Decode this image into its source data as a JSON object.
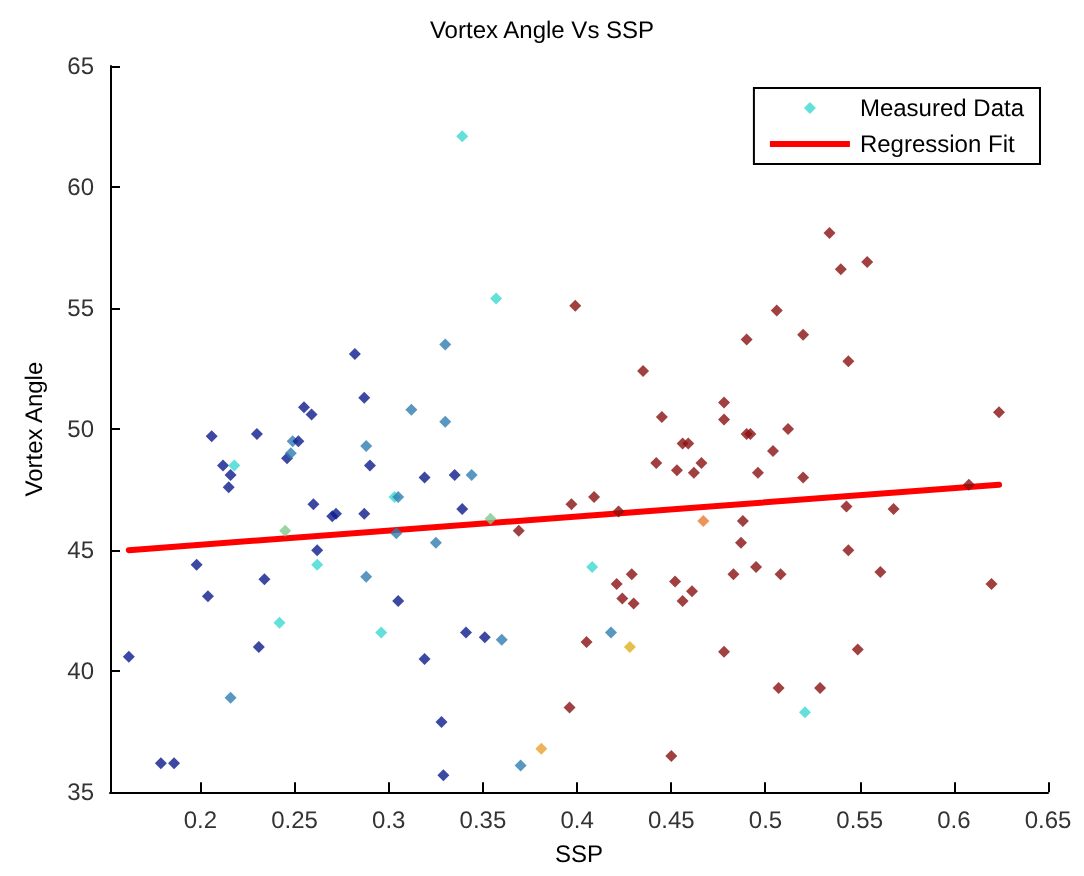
{
  "chart_data": {
    "type": "scatter",
    "title": "Vortex Angle Vs SSP",
    "xlabel": "SSP",
    "ylabel": "Vortex Angle",
    "xlim": [
      0.152,
      0.65
    ],
    "xticks": [
      0.2,
      0.25,
      0.3,
      0.35,
      0.4,
      0.45,
      0.5,
      0.55,
      0.6,
      0.65
    ],
    "ylim": [
      35,
      65
    ],
    "yticks": [
      35,
      40,
      45,
      50,
      55,
      60,
      65
    ],
    "grid": false,
    "legend": "top right",
    "marker": "diamond",
    "series": [
      {
        "name": "Measured Data",
        "type": "scatter",
        "x": [
          0.339,
          0.357,
          0.399,
          0.282,
          0.33,
          0.287,
          0.255,
          0.259,
          0.312,
          0.33,
          0.206,
          0.23,
          0.534,
          0.54,
          0.554,
          0.506,
          0.52,
          0.49,
          0.544,
          0.435,
          0.624,
          0.445,
          0.478,
          0.478,
          0.49,
          0.512,
          0.249,
          0.252,
          0.246,
          0.248,
          0.288,
          0.212,
          0.218,
          0.216,
          0.215,
          0.29,
          0.319,
          0.335,
          0.344,
          0.303,
          0.305,
          0.26,
          0.339,
          0.27,
          0.272,
          0.287,
          0.245,
          0.304,
          0.354,
          0.325,
          0.369,
          0.397,
          0.409,
          0.262,
          0.262,
          0.198,
          0.234,
          0.288,
          0.204,
          0.305,
          0.242,
          0.408,
          0.296,
          0.341,
          0.351,
          0.36,
          0.405,
          0.231,
          0.319,
          0.162,
          0.216,
          0.396,
          0.328,
          0.381,
          0.179,
          0.186,
          0.37,
          0.329,
          0.456,
          0.459,
          0.492,
          0.504,
          0.442,
          0.453,
          0.462,
          0.466,
          0.496,
          0.52,
          0.422,
          0.467,
          0.543,
          0.568,
          0.608,
          0.488,
          0.487,
          0.544,
          0.429,
          0.421,
          0.452,
          0.461,
          0.424,
          0.43,
          0.456,
          0.483,
          0.495,
          0.508,
          0.561,
          0.62,
          0.418,
          0.428,
          0.478,
          0.549,
          0.507,
          0.529,
          0.521,
          0.45
        ],
        "values": [
          62.1,
          55.4,
          55.1,
          53.1,
          53.5,
          51.3,
          50.9,
          50.6,
          50.8,
          50.3,
          49.7,
          49.8,
          58.1,
          56.6,
          56.9,
          54.9,
          53.9,
          53.7,
          52.8,
          52.4,
          50.7,
          50.5,
          51.1,
          50.4,
          49.8,
          50.0,
          49.5,
          49.5,
          48.8,
          49.0,
          49.3,
          48.5,
          48.5,
          48.1,
          47.6,
          48.5,
          48.0,
          48.1,
          48.1,
          47.2,
          47.2,
          46.9,
          46.7,
          46.4,
          46.5,
          46.5,
          45.8,
          45.7,
          46.3,
          45.3,
          45.8,
          46.9,
          47.2,
          45.0,
          44.4,
          44.4,
          43.8,
          43.9,
          43.1,
          42.9,
          42.0,
          44.3,
          41.6,
          41.6,
          41.4,
          41.3,
          41.2,
          41.0,
          40.5,
          40.6,
          38.9,
          38.5,
          37.9,
          36.8,
          36.2,
          36.2,
          36.1,
          35.7,
          49.4,
          49.4,
          49.8,
          49.1,
          48.6,
          48.3,
          48.2,
          48.6,
          48.2,
          48.0,
          46.6,
          46.2,
          46.8,
          46.7,
          47.7,
          46.2,
          45.3,
          45.0,
          44.0,
          43.6,
          43.7,
          43.3,
          43.0,
          42.8,
          42.9,
          44.0,
          44.3,
          44.0,
          44.1,
          43.6,
          41.6,
          41.0,
          40.8,
          40.9,
          39.3,
          39.3,
          38.3,
          36.5
        ],
        "colors": [
          "#3cd8d0",
          "#3cd8d0",
          "#8a1010",
          "#0c1a8c",
          "#2f7db0",
          "#0c1a8c",
          "#0c1a8c",
          "#0c1a8c",
          "#2f7db0",
          "#2f7db0",
          "#0c1a8c",
          "#0c1a8c",
          "#8a1010",
          "#8a1010",
          "#8a1010",
          "#8a1010",
          "#8a1010",
          "#8a1010",
          "#8a1010",
          "#8a1010",
          "#8a1010",
          "#8a1010",
          "#8a1010",
          "#8a1010",
          "#8a1010",
          "#8a1010",
          "#2f7db0",
          "#0c1a8c",
          "#0c1a8c",
          "#2f7db0",
          "#2f7db0",
          "#0c1a8c",
          "#3cd8d0",
          "#0c1a8c",
          "#0c1a8c",
          "#0c1a8c",
          "#0c1a8c",
          "#0c1a8c",
          "#2f7db0",
          "#3cd8d0",
          "#2f7db0",
          "#0c1a8c",
          "#0c1a8c",
          "#0c1a8c",
          "#0c1a8c",
          "#0c1a8c",
          "#80c890",
          "#2f7db0",
          "#80c890",
          "#2f7db0",
          "#8a1010",
          "#8a1010",
          "#8a1010",
          "#0c1a8c",
          "#3cd8d0",
          "#0c1a8c",
          "#0c1a8c",
          "#2f7db0",
          "#0c1a8c",
          "#0c1a8c",
          "#3cd8d0",
          "#3cd8d0",
          "#3cd8d0",
          "#0c1a8c",
          "#0c1a8c",
          "#2f7db0",
          "#8a1010",
          "#0c1a8c",
          "#0c1a8c",
          "#0c1a8c",
          "#2f7db0",
          "#8a1010",
          "#0c1a8c",
          "#e8a030",
          "#0c1a8c",
          "#0c1a8c",
          "#2f7db0",
          "#0c1a8c",
          "#8a1010",
          "#8a1010",
          "#8a1010",
          "#8a1010",
          "#8a1010",
          "#8a1010",
          "#8a1010",
          "#8a1010",
          "#8a1010",
          "#8a1010",
          "#8a1010",
          "#e87a30",
          "#8a1010",
          "#8a1010",
          "#8a1010",
          "#8a1010",
          "#8a1010",
          "#8a1010",
          "#8a1010",
          "#8a1010",
          "#8a1010",
          "#8a1010",
          "#8a1010",
          "#8a1010",
          "#8a1010",
          "#8a1010",
          "#8a1010",
          "#8a1010",
          "#8a1010",
          "#8a1010",
          "#2f7db0",
          "#e0b020",
          "#8a1010",
          "#8a1010",
          "#8a1010",
          "#8a1010",
          "#3cd8d0",
          "#8a1010"
        ]
      },
      {
        "name": "Regression Fit",
        "type": "line",
        "color": "#ff0000",
        "marker": "none",
        "line_style": "solid",
        "x": [
          0.162,
          0.624
        ],
        "values": [
          45.0,
          47.7
        ]
      }
    ]
  }
}
